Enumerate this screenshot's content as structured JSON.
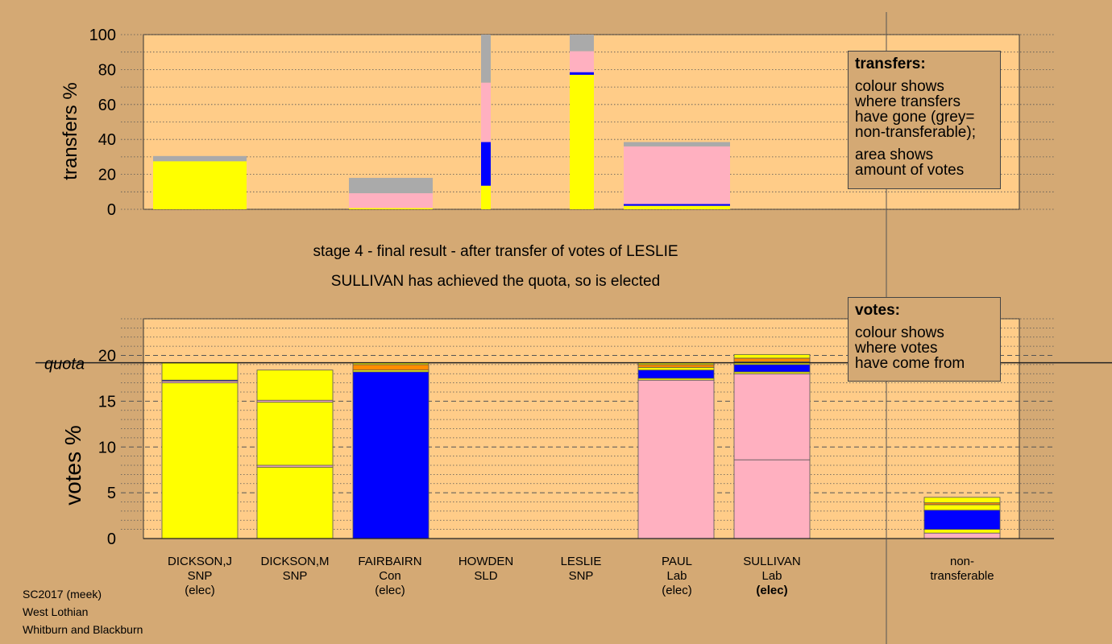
{
  "chart_data": [
    {
      "type": "bar",
      "stacked": true,
      "ylabel": "transfers %",
      "ylim": [
        0,
        100
      ],
      "yticks": [
        0,
        20,
        40,
        60,
        80,
        100
      ],
      "grid": "dotted horizontal every 10",
      "bars": [
        {
          "category": "DICKSON,J",
          "segments": [
            {
              "color": "#ffff00",
              "value": 27.5
            },
            {
              "color": "#aaaaaa",
              "value": 3
            }
          ]
        },
        {
          "category": "DICKSON,M",
          "segments": []
        },
        {
          "category": "FAIRBAIRN",
          "segments": [
            {
              "color": "#ffff00",
              "value": 0.7
            },
            {
              "color": "#ffb0c0",
              "value": 8.5
            },
            {
              "color": "#aaaaaa",
              "value": 8.8
            }
          ]
        },
        {
          "category": "HOWDEN",
          "segments": [
            {
              "color": "#ffff00",
              "value": 13.5
            },
            {
              "color": "#0000ff",
              "value": 25
            },
            {
              "color": "#ffb0c0",
              "value": 34
            },
            {
              "color": "#aaaaaa",
              "value": 27.5
            }
          ]
        },
        {
          "category": "LESLIE",
          "segments": [
            {
              "color": "#ffff00",
              "value": 77
            },
            {
              "color": "#0000ff",
              "value": 1.5
            },
            {
              "color": "#ffb0c0",
              "value": 12
            },
            {
              "color": "#aaaaaa",
              "value": 9.5
            }
          ]
        },
        {
          "category": "PAUL",
          "segments": [
            {
              "color": "#ffff00",
              "value": 2
            },
            {
              "color": "#0000ff",
              "value": 1
            },
            {
              "color": "#ffb0c0",
              "value": 33
            },
            {
              "color": "#aaaaaa",
              "value": 2.5
            }
          ]
        },
        {
          "category": "SULLIVAN",
          "segments": []
        }
      ]
    },
    {
      "type": "bar",
      "stacked": true,
      "ylabel": "votes %",
      "ylim": [
        0,
        24
      ],
      "yticks": [
        0,
        5,
        10,
        15,
        20
      ],
      "quota": 19.2,
      "quota_label": "quota",
      "bars": [
        {
          "category": "DICKSON,J",
          "segments": [
            {
              "color": "#ffff00",
              "value": 17.0
            },
            {
              "color": "#ffb0c0",
              "value": 0.2
            },
            {
              "color": "#0000ff",
              "value": 0.1
            },
            {
              "color": "#ffff00",
              "value": 1.9
            }
          ]
        },
        {
          "category": "DICKSON,M",
          "segments": [
            {
              "color": "#ffff00",
              "value": 7.8
            },
            {
              "color": "#ffb0c0",
              "value": 0.2
            },
            {
              "color": "#ffff00",
              "value": 6.9
            },
            {
              "color": "#ffb0c0",
              "value": 0.2
            },
            {
              "color": "#ffff00",
              "value": 3.3
            }
          ]
        },
        {
          "category": "FAIRBAIRN",
          "segments": [
            {
              "color": "#0000ff",
              "value": 18.2
            },
            {
              "color": "#ffff00",
              "value": 0.2
            },
            {
              "color": "#ff8c00",
              "value": 0.6
            },
            {
              "color": "#ffff00",
              "value": 0.2
            }
          ]
        },
        {
          "category": "HOWDEN",
          "segments": []
        },
        {
          "category": "LESLIE",
          "segments": []
        },
        {
          "category": "PAUL",
          "segments": [
            {
              "color": "#ffb0c0",
              "value": 17.3
            },
            {
              "color": "#ffff00",
              "value": 0.2
            },
            {
              "color": "#0000ff",
              "value": 0.9
            },
            {
              "color": "#ffff00",
              "value": 0.3
            },
            {
              "color": "#ff8c00",
              "value": 0.3
            },
            {
              "color": "#ffff00",
              "value": 0.2
            }
          ]
        },
        {
          "category": "SULLIVAN",
          "segments": [
            {
              "color": "#ffb0c0",
              "value": 8.6
            },
            {
              "color": "#ffb0c0",
              "value": 9.4
            },
            {
              "color": "#ffff00",
              "value": 0.2
            },
            {
              "color": "#0000ff",
              "value": 0.8
            },
            {
              "color": "#ffff00",
              "value": 0.3
            },
            {
              "color": "#ff8c00",
              "value": 0.4
            },
            {
              "color": "#ffff00",
              "value": 0.4
            }
          ]
        },
        {
          "category": "non-transferable",
          "segments": [
            {
              "color": "#ffb0c0",
              "value": 0.6
            },
            {
              "color": "#ffff00",
              "value": 0.4
            },
            {
              "color": "#0000ff",
              "value": 2.1
            },
            {
              "color": "#ffff00",
              "value": 0.6
            },
            {
              "color": "#ff8c00",
              "value": 0.2
            },
            {
              "color": "#ffff00",
              "value": 0.6
            }
          ]
        }
      ]
    }
  ],
  "top_legend": {
    "title": "transfers:",
    "lines1": [
      "colour shows",
      "where transfers",
      "have gone (grey=",
      "non-transferable);"
    ],
    "lines2": [
      "area shows",
      "amount of votes"
    ]
  },
  "bottom_legend": {
    "title": "votes:",
    "lines": [
      "colour shows",
      "where votes",
      "have come from"
    ]
  },
  "captions": {
    "line1": "stage 4 - final result - after transfer of votes of LESLIE",
    "line2": "SULLIVAN has achieved the quota, so is elected"
  },
  "candidates": [
    {
      "name": "DICKSON,J",
      "party": "SNP",
      "status": "(elec)",
      "bold": false
    },
    {
      "name": "DICKSON,M",
      "party": "SNP",
      "status": "",
      "bold": false
    },
    {
      "name": "FAIRBAIRN",
      "party": "Con",
      "status": "(elec)",
      "bold": false
    },
    {
      "name": "HOWDEN",
      "party": "SLD",
      "status": "",
      "bold": false
    },
    {
      "name": "LESLIE",
      "party": "SNP",
      "status": "",
      "bold": false
    },
    {
      "name": "PAUL",
      "party": "Lab",
      "status": "(elec)",
      "bold": false
    },
    {
      "name": "SULLIVAN",
      "party": "Lab",
      "status": "(elec)",
      "bold": true
    }
  ],
  "nontransferable_label": {
    "line1": "non-",
    "line2": "transferable"
  },
  "footer": {
    "line1": "SC2017 (meek)",
    "line2": "West Lothian",
    "line3": "Whitburn and Blackburn"
  },
  "colors": {
    "background": "#d4a974",
    "panel": "#ffcc88",
    "yellow": "#ffff00",
    "blue": "#0000ff",
    "pink": "#ffb0c0",
    "orange": "#ff8c00",
    "grey": "#aaaaaa"
  }
}
